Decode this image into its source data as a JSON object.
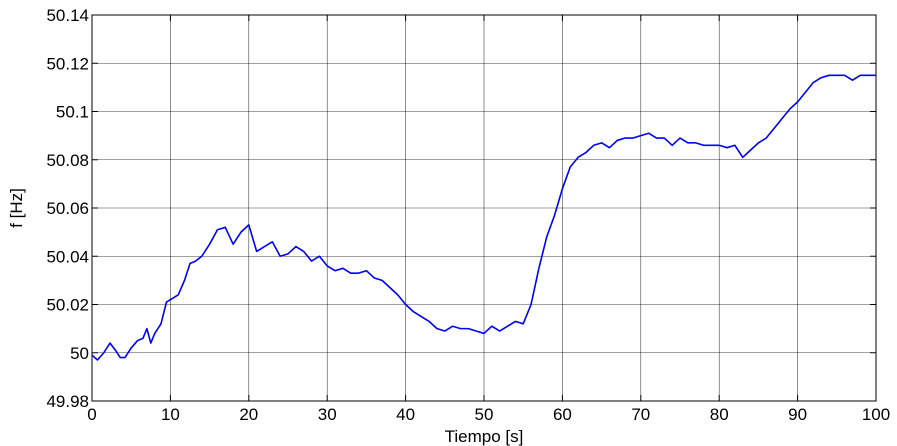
{
  "chart_data": {
    "type": "line",
    "title": "",
    "xlabel": "Tiempo [s]",
    "ylabel": "f [Hz]",
    "xlim": [
      0,
      100
    ],
    "ylim": [
      49.98,
      50.14
    ],
    "grid": true,
    "line_color": "#0000ff",
    "xticks": [
      0,
      10,
      20,
      30,
      40,
      50,
      60,
      70,
      80,
      90,
      100
    ],
    "xtick_labels": [
      "0",
      "10",
      "20",
      "30",
      "40",
      "50",
      "60",
      "70",
      "80",
      "90",
      "100"
    ],
    "yticks": [
      49.98,
      50,
      50.02,
      50.04,
      50.06,
      50.08,
      50.1,
      50.12,
      50.14
    ],
    "ytick_labels": [
      "49.98",
      "50",
      "50.02",
      "50.04",
      "50.06",
      "50.08",
      "50.1",
      "50.12",
      "50.14"
    ],
    "series": [
      {
        "x": [
          0,
          0.7,
          1.5,
          2.3,
          3,
          3.6,
          4.2,
          5,
          5.8,
          6.5,
          7,
          7.5,
          8,
          8.8,
          9.5,
          10,
          11,
          11.8,
          12.5,
          13.2,
          14,
          15,
          16,
          17,
          18,
          19,
          20,
          21,
          22,
          23,
          24,
          25,
          26,
          27,
          28,
          29,
          30,
          31,
          32,
          33,
          34,
          35,
          36,
          37,
          38,
          39,
          40,
          41,
          42,
          43,
          44,
          45,
          46,
          47,
          48,
          49,
          50,
          51,
          52,
          53,
          54,
          55,
          56,
          57,
          58,
          59,
          60,
          61,
          62,
          63,
          64,
          65,
          66,
          67,
          68,
          69,
          70,
          71,
          72,
          73,
          74,
          75,
          76,
          77,
          78,
          79,
          80,
          81,
          82,
          83,
          84,
          85,
          86,
          87,
          88,
          89,
          90,
          91,
          92,
          93,
          94,
          95,
          96,
          97,
          98,
          99,
          100
        ],
        "y": [
          49.999,
          49.997,
          50.0,
          50.004,
          50.001,
          49.998,
          49.998,
          50.002,
          50.005,
          50.006,
          50.01,
          50.004,
          50.008,
          50.012,
          50.021,
          50.022,
          50.024,
          50.03,
          50.037,
          50.038,
          50.04,
          50.045,
          50.051,
          50.052,
          50.045,
          50.05,
          50.053,
          50.042,
          50.044,
          50.046,
          50.04,
          50.041,
          50.044,
          50.042,
          50.038,
          50.04,
          50.036,
          50.034,
          50.035,
          50.033,
          50.033,
          50.034,
          50.031,
          50.03,
          50.027,
          50.024,
          50.02,
          50.017,
          50.015,
          50.013,
          50.01,
          50.009,
          50.011,
          50.01,
          50.01,
          50.009,
          50.008,
          50.011,
          50.009,
          50.011,
          50.013,
          50.012,
          50.02,
          50.035,
          50.048,
          50.057,
          50.068,
          50.077,
          50.081,
          50.083,
          50.086,
          50.087,
          50.085,
          50.088,
          50.089,
          50.089,
          50.09,
          50.091,
          50.089,
          50.089,
          50.086,
          50.089,
          50.087,
          50.087,
          50.086,
          50.086,
          50.086,
          50.085,
          50.086,
          50.081,
          50.084,
          50.087,
          50.089,
          50.093,
          50.097,
          50.101,
          50.104,
          50.108,
          50.112,
          50.114,
          50.115,
          50.115,
          50.115,
          50.113,
          50.115,
          50.115,
          50.115
        ]
      }
    ]
  }
}
